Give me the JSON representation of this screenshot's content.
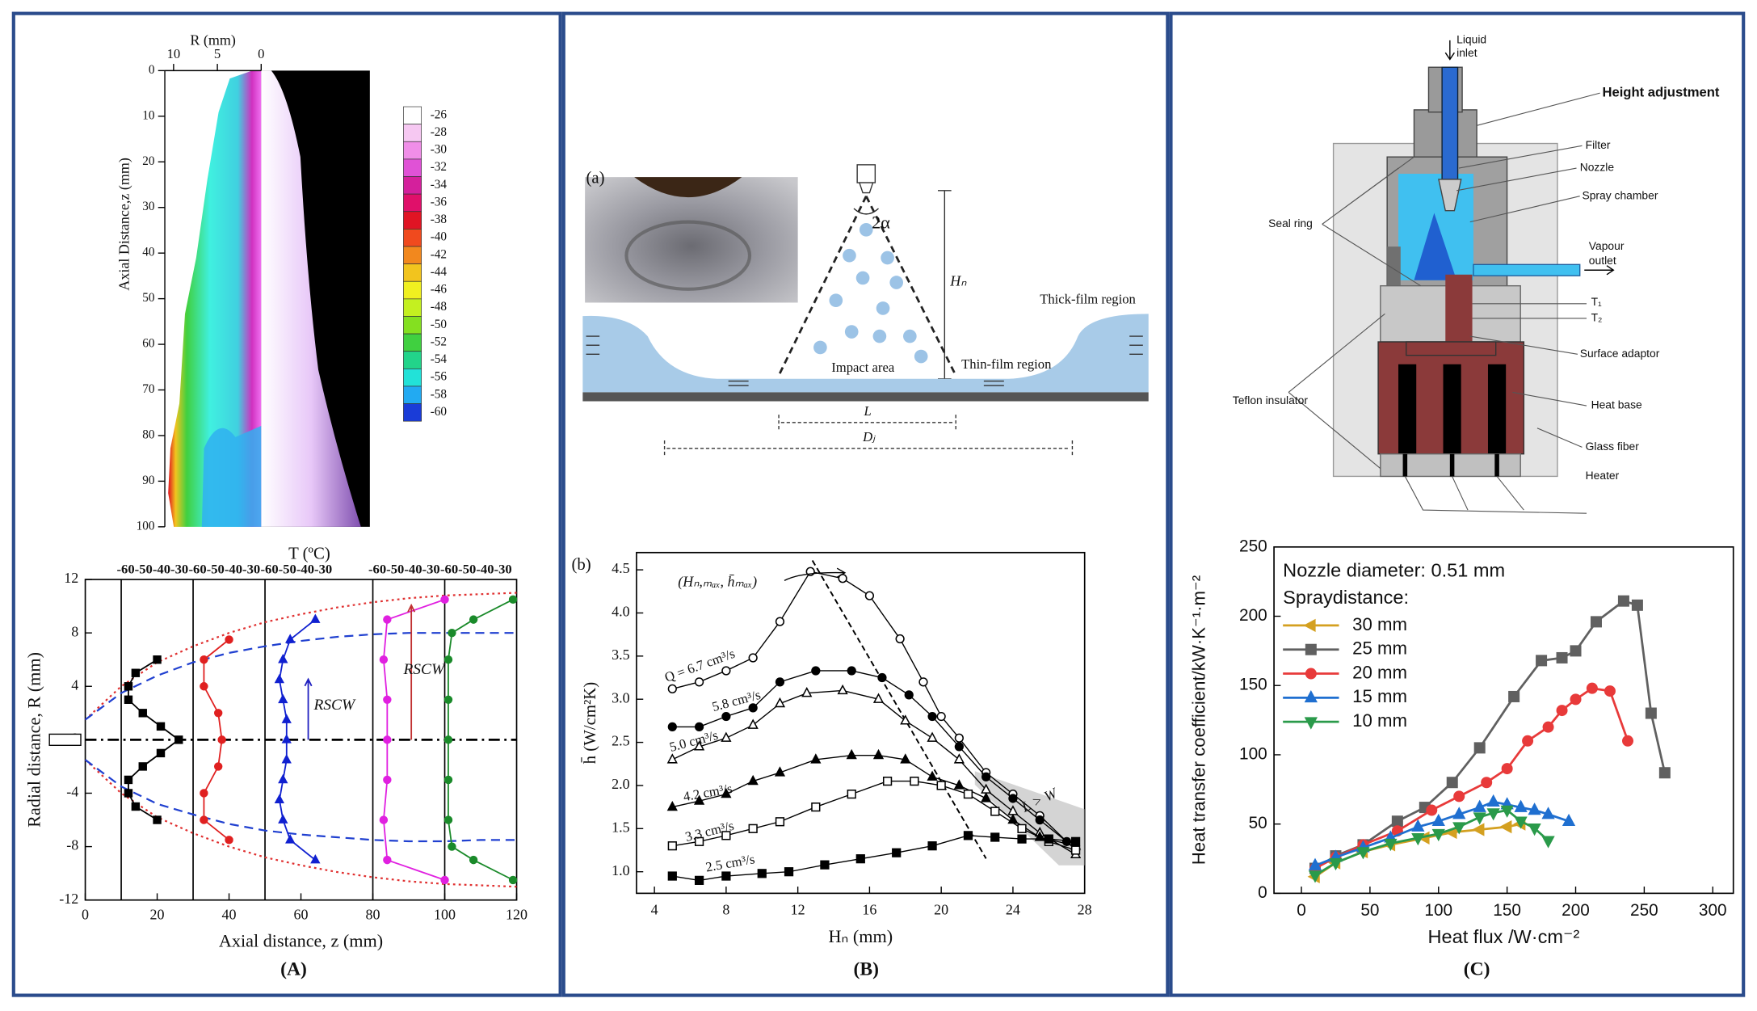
{
  "panels": {
    "A": "(A)",
    "B": "(B)",
    "C": "(C)"
  },
  "spray_diagram": {
    "label": "(a)",
    "angle": "2α",
    "height": "Hₙ",
    "thick_film": "Thick-film region",
    "impact": "Impact area",
    "thin_film": "Thin-film region",
    "L": "L",
    "Dj": "Dⱼ"
  },
  "apparatus": {
    "inlet": [
      "Liquid",
      "inlet"
    ],
    "height_adjustment": "Height adjustment",
    "filter": "Filter",
    "nozzle": "Nozzle",
    "spray_chamber": "Spray chamber",
    "seal_ring": "Seal ring",
    "outlet": [
      "Vapour",
      "outlet"
    ],
    "t1": "T₁",
    "t2": "T₂",
    "surface_adaptor": "Surface adaptor",
    "teflon": "Teflon insulator",
    "heat_base": "Heat base",
    "glass_fiber": "Glass fiber",
    "heater": "Heater"
  },
  "chart_data": [
    {
      "type": "contour",
      "xlabel": "R (mm)",
      "ylabel": "Axial Distance,z (mm)",
      "xlim": [
        11,
        0
      ],
      "ylim": [
        100,
        0
      ],
      "xticks": [
        10,
        5,
        0
      ],
      "yticks": [
        0,
        10,
        20,
        30,
        40,
        50,
        60,
        70,
        80,
        90,
        100
      ],
      "colorbar": {
        "ticks": [
          -26,
          -28,
          -30,
          -32,
          -34,
          -36,
          -38,
          -40,
          -42,
          -44,
          -46,
          -48,
          -50,
          -52,
          -54,
          -56,
          -58,
          -60
        ],
        "colors": [
          "#ffffff",
          "#f6c8f2",
          "#f08ee8",
          "#e052d6",
          "#d4209c",
          "#e0106a",
          "#e01424",
          "#f04a1e",
          "#f2881e",
          "#f2c41e",
          "#f0f020",
          "#c4f020",
          "#84e020",
          "#40d040",
          "#22d48a",
          "#22e2d8",
          "#22aaf2",
          "#1a3cd8"
        ]
      }
    },
    {
      "type": "profile",
      "xlabel": "Axial distance, z (mm)",
      "ylabel": "Radial distance, R (mm)",
      "top_axis_title": "T (ºC)",
      "temperature_axes": {
        "at": [
          10,
          30,
          50,
          80,
          100
        ],
        "labels": [
          "-60-50-40-30",
          "-60-50-40-30",
          "-60-50-40-30",
          "-60-50-40-30",
          "-60-50-40-30"
        ]
      },
      "xlim": [
        0,
        120
      ],
      "ylim": [
        -12,
        12
      ],
      "xticks": [
        0,
        20,
        40,
        60,
        80,
        100,
        120
      ],
      "yticks": [
        -12,
        -8,
        -4,
        0,
        4,
        8,
        12
      ],
      "annotations": [
        "RSCW",
        "RSCW"
      ],
      "envelopes": [
        {
          "color": "#e03030",
          "dash": "dotted",
          "x": [
            0,
            10,
            20,
            30,
            40,
            50,
            60,
            70,
            80,
            90,
            100,
            110,
            120
          ],
          "values": [
            1.5,
            4,
            5.8,
            7,
            8,
            8.8,
            9.4,
            9.9,
            10.3,
            10.6,
            10.8,
            10.9,
            11
          ]
        },
        {
          "color": "#e03030",
          "dash": "dotted",
          "x": [
            0,
            10,
            20,
            30,
            40,
            50,
            60,
            70,
            80,
            90,
            100,
            110,
            120
          ],
          "values": [
            -1.5,
            -4,
            -5.8,
            -7,
            -8,
            -8.8,
            -9.4,
            -9.9,
            -10.3,
            -10.6,
            -10.8,
            -10.9,
            -11
          ]
        },
        {
          "color": "#2040d0",
          "dash": "dashed",
          "x": [
            0,
            10,
            20,
            30,
            40,
            50,
            60,
            70,
            80,
            90,
            100,
            110,
            120
          ],
          "values": [
            1.5,
            3.5,
            4.8,
            5.8,
            6.5,
            7,
            7.4,
            7.7,
            7.9,
            8,
            8,
            8,
            8
          ]
        },
        {
          "color": "#2040d0",
          "dash": "dashed",
          "x": [
            0,
            10,
            20,
            30,
            40,
            50,
            60,
            70,
            80,
            90,
            100,
            110,
            120
          ],
          "values": [
            -1.5,
            -3.5,
            -4.8,
            -5.6,
            -6.3,
            -6.8,
            -7.1,
            -7.3,
            -7.5,
            -7.6,
            -7.6,
            -7.5,
            -7.5
          ]
        }
      ],
      "series": [
        {
          "color": "#000000",
          "marker": "square",
          "x": [
            20,
            14,
            12,
            12,
            16,
            21,
            26,
            21,
            16,
            12,
            12,
            14,
            20
          ],
          "values": [
            6,
            5,
            4,
            3,
            2,
            1,
            0,
            -1,
            -2,
            -3,
            -4,
            -5,
            -6
          ]
        },
        {
          "color": "#e02020",
          "marker": "circle",
          "x": [
            40,
            33,
            33,
            37,
            38,
            37,
            33,
            33,
            40
          ],
          "values": [
            7.5,
            6,
            4,
            2,
            0,
            -2,
            -4,
            -6,
            -7.5
          ]
        },
        {
          "color": "#1020d0",
          "marker": "triangle",
          "x": [
            64,
            57,
            55,
            54,
            55,
            56,
            56,
            56,
            55,
            54,
            55,
            57,
            64
          ],
          "values": [
            9,
            7.5,
            6,
            4.5,
            3,
            1.5,
            0,
            -1.5,
            -3,
            -4.5,
            -6,
            -7.5,
            -9
          ]
        },
        {
          "color": "#e020e0",
          "marker": "circle",
          "x": [
            100,
            84,
            83,
            84,
            84,
            84,
            83,
            84,
            100
          ],
          "values": [
            10.5,
            9,
            6,
            3,
            0,
            -3,
            -6,
            -9,
            -10.5
          ]
        },
        {
          "color": "#1a8a2a",
          "marker": "circle",
          "x": [
            119,
            108,
            102,
            101,
            101,
            101,
            101,
            101,
            102,
            108,
            119
          ],
          "values": [
            10.5,
            9,
            8,
            6,
            3,
            0,
            -3,
            -6,
            -8,
            -9,
            -10.5
          ]
        }
      ]
    },
    {
      "type": "line",
      "subtitle": "(b)",
      "xlabel": "Hₙ (mm)",
      "ylabel": "h̄ (W/cm²K)",
      "xlim": [
        3,
        28
      ],
      "ylim": [
        0.75,
        4.7
      ],
      "xticks": [
        4,
        8,
        12,
        16,
        20,
        24,
        28
      ],
      "yticks": [
        {
          "value": 1,
          "label": "1.0"
        },
        1.5,
        {
          "value": 2,
          "label": "2.0"
        },
        2.5,
        {
          "value": 3,
          "label": "3.0"
        },
        3.5,
        {
          "value": 4,
          "label": "4.0"
        },
        4.5
      ],
      "legend": "inline",
      "annotations": [
        "(Hₙ,ₘₐₓ, h̄ₘₐₓ)",
        "L > W"
      ],
      "series": [
        {
          "name": "Q = 6.7 cm³/s",
          "color": "#000000",
          "marker": "circle-open",
          "x": [
            5,
            6.5,
            8,
            9.5,
            11,
            12.7,
            14.5,
            16,
            17.7,
            19,
            20,
            21,
            22.5,
            24,
            25.5,
            27.5
          ],
          "values": [
            3.12,
            3.2,
            3.33,
            3.48,
            3.9,
            4.48,
            4.4,
            4.2,
            3.7,
            3.2,
            2.8,
            2.55,
            2.15,
            1.9,
            1.65,
            1.25
          ]
        },
        {
          "name": "5.8 cm³/s",
          "color": "#000000",
          "marker": "circle",
          "x": [
            5,
            6.5,
            8,
            9.5,
            11,
            13,
            15,
            16.7,
            18.2,
            19.5,
            21,
            22.5,
            24,
            25.5,
            27
          ],
          "values": [
            2.68,
            2.68,
            2.8,
            2.9,
            3.2,
            3.33,
            3.33,
            3.25,
            3.05,
            2.8,
            2.45,
            2.1,
            1.85,
            1.6,
            1.35
          ]
        },
        {
          "name": "5.0 cm³/s",
          "color": "#000000",
          "marker": "triangle-open",
          "x": [
            5,
            6.5,
            8,
            9.5,
            11,
            12.5,
            14.5,
            16.5,
            18,
            19.5,
            21,
            22.5,
            24,
            25.5,
            27.5
          ],
          "values": [
            2.3,
            2.45,
            2.55,
            2.7,
            2.95,
            3.07,
            3.1,
            3.0,
            2.75,
            2.55,
            2.3,
            1.95,
            1.7,
            1.45,
            1.2
          ]
        },
        {
          "name": "4.2 cm³/s",
          "color": "#000000",
          "marker": "triangle",
          "x": [
            5,
            6.5,
            8,
            9.5,
            11,
            13,
            15,
            16.5,
            18,
            19.5,
            21,
            22.5,
            24,
            25.5,
            27.5
          ],
          "values": [
            1.75,
            1.82,
            1.9,
            2.05,
            2.15,
            2.3,
            2.35,
            2.35,
            2.3,
            2.1,
            2.0,
            1.85,
            1.6,
            1.4,
            1.3
          ]
        },
        {
          "name": "3.3 cm³/s",
          "color": "#000000",
          "marker": "square-open",
          "x": [
            5,
            6.5,
            8,
            9.5,
            11,
            13,
            15,
            17,
            18.5,
            20,
            21.5,
            23,
            24.5,
            26,
            27.5
          ],
          "values": [
            1.3,
            1.35,
            1.42,
            1.5,
            1.58,
            1.75,
            1.9,
            2.05,
            2.05,
            2.0,
            1.9,
            1.7,
            1.5,
            1.35,
            1.25
          ]
        },
        {
          "name": "2.5 cm³/s",
          "color": "#000000",
          "marker": "square",
          "x": [
            5,
            6.5,
            8,
            10,
            11.5,
            13.5,
            15.5,
            17.5,
            19.5,
            21.5,
            23,
            24.5,
            26,
            27.5
          ],
          "values": [
            0.95,
            0.9,
            0.95,
            0.98,
            1.0,
            1.08,
            1.15,
            1.22,
            1.3,
            1.42,
            1.4,
            1.38,
            1.38,
            1.35
          ]
        }
      ]
    },
    {
      "type": "line",
      "xlabel": "Heat flux /W·cm⁻²",
      "ylabel": "Heat transfer coefficient/kW·K⁻¹·m⁻²",
      "xlim": [
        -20,
        315
      ],
      "ylim": [
        0,
        250
      ],
      "xticks": [
        0,
        50,
        100,
        150,
        200,
        250,
        300
      ],
      "yticks": [
        0,
        50,
        100,
        150,
        200,
        250
      ],
      "legend": "upper left",
      "legend_notes": [
        "Nozzle diameter: 0.51 mm",
        "Spraydistance:"
      ],
      "series": [
        {
          "name": "30 mm",
          "color": "#d4a020",
          "marker": "triangle-left",
          "x": [
            10,
            25,
            45,
            65,
            90,
            110,
            130,
            150,
            160
          ],
          "values": [
            12,
            22,
            30,
            35,
            40,
            44,
            46,
            48,
            50
          ]
        },
        {
          "name": "25 mm",
          "color": "#606060",
          "marker": "square",
          "x": [
            10,
            25,
            45,
            70,
            90,
            110,
            130,
            155,
            175,
            190,
            200,
            215,
            235,
            245,
            255,
            265
          ],
          "values": [
            18,
            27,
            35,
            52,
            62,
            80,
            105,
            142,
            168,
            170,
            175,
            196,
            211,
            208,
            130,
            87
          ]
        },
        {
          "name": "20 mm",
          "color": "#e83a3a",
          "marker": "circle",
          "x": [
            10,
            25,
            45,
            70,
            95,
            115,
            135,
            150,
            165,
            180,
            190,
            200,
            212,
            225,
            238
          ],
          "values": [
            18,
            26,
            35,
            45,
            60,
            70,
            80,
            90,
            110,
            120,
            132,
            140,
            148,
            146,
            110
          ]
        },
        {
          "name": "15 mm",
          "color": "#1f6fd0",
          "marker": "triangle",
          "x": [
            10,
            25,
            45,
            65,
            85,
            100,
            115,
            130,
            140,
            150,
            160,
            170,
            180,
            195
          ],
          "values": [
            20,
            26,
            33,
            40,
            48,
            52,
            57,
            62,
            66,
            64,
            62,
            60,
            57,
            52
          ]
        },
        {
          "name": "10 mm",
          "color": "#2a9a4a",
          "marker": "triangle-down",
          "x": [
            10,
            25,
            45,
            65,
            85,
            100,
            115,
            130,
            140,
            150,
            160,
            170,
            180
          ],
          "values": [
            13,
            22,
            30,
            36,
            40,
            43,
            48,
            55,
            58,
            60,
            52,
            47,
            38
          ]
        }
      ]
    }
  ]
}
